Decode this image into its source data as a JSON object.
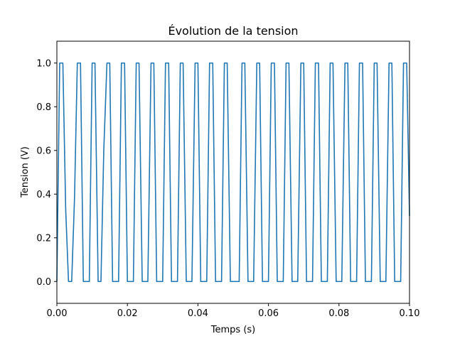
{
  "chart_data": {
    "type": "line",
    "title": "Évolution de la tension",
    "xlabel": "Temps (s)",
    "ylabel": "Tension (V)",
    "xlim": [
      0.0,
      0.1
    ],
    "ylim": [
      -0.1,
      1.1
    ],
    "grid": false,
    "x_ticks": [
      "0.00",
      "0.02",
      "0.04",
      "0.06",
      "0.08",
      "0.10"
    ],
    "y_ticks": [
      "0.0",
      "0.2",
      "0.4",
      "0.6",
      "0.8",
      "1.0"
    ],
    "line_color": "#1f77b4",
    "series": [
      {
        "x": [
          0.0,
          0.0008,
          0.0017,
          0.0025,
          0.0033,
          0.0042,
          0.005,
          0.0058,
          0.0067,
          0.0075,
          0.0083,
          0.0092,
          0.01,
          0.0108,
          0.0117,
          0.0125,
          0.0133,
          0.0142,
          0.015,
          0.0158,
          0.0167,
          0.0175,
          0.0183,
          0.0192,
          0.02,
          0.0208,
          0.0217,
          0.0225,
          0.0233,
          0.0242,
          0.025,
          0.0258,
          0.0267,
          0.0275,
          0.0283,
          0.0292,
          0.03,
          0.0308,
          0.0317,
          0.0325,
          0.0333,
          0.0342,
          0.035,
          0.0358,
          0.0367,
          0.0375,
          0.0383,
          0.0392,
          0.04,
          0.0408,
          0.0417,
          0.0425,
          0.0433,
          0.0442,
          0.045,
          0.0458,
          0.0467,
          0.0475,
          0.0483,
          0.0492,
          0.05,
          0.0508,
          0.0517,
          0.0525,
          0.0533,
          0.0542,
          0.055,
          0.0558,
          0.0567,
          0.0575,
          0.0583,
          0.0592,
          0.06,
          0.0608,
          0.0617,
          0.0625,
          0.0633,
          0.0642,
          0.065,
          0.0658,
          0.0667,
          0.0675,
          0.0683,
          0.0692,
          0.07,
          0.0708,
          0.0717,
          0.0725,
          0.0733,
          0.0742,
          0.075,
          0.0758,
          0.0767,
          0.0775,
          0.0783,
          0.0792,
          0.08,
          0.0808,
          0.0817,
          0.0825,
          0.0833,
          0.0842,
          0.085,
          0.0858,
          0.0867,
          0.0875,
          0.0883,
          0.0892,
          0.09,
          0.0908,
          0.0917,
          0.0925,
          0.0933,
          0.0942,
          0.095,
          0.0958,
          0.0967,
          0.0975,
          0.0983,
          0.0992,
          0.1
        ],
        "values": [
          0.0,
          1.0,
          1.0,
          0.33,
          0.0,
          0.0,
          0.38,
          1.0,
          1.0,
          0.0,
          0.0,
          0.0,
          1.0,
          1.0,
          0.0,
          0.0,
          0.6,
          1.0,
          1.0,
          0.0,
          0.0,
          0.0,
          1.0,
          1.0,
          0.0,
          0.0,
          0.0,
          1.0,
          1.0,
          0.0,
          0.0,
          0.0,
          1.0,
          1.0,
          0.0,
          0.0,
          0.0,
          1.0,
          1.0,
          0.0,
          0.0,
          0.0,
          1.0,
          1.0,
          0.0,
          0.0,
          0.0,
          1.0,
          1.0,
          0.0,
          0.0,
          0.0,
          1.0,
          1.0,
          0.0,
          0.0,
          0.0,
          1.0,
          1.0,
          0.0,
          0.0,
          0.0,
          0.0,
          1.0,
          1.0,
          0.0,
          0.0,
          0.0,
          1.0,
          1.0,
          0.0,
          0.0,
          0.0,
          1.0,
          1.0,
          0.0,
          0.0,
          0.0,
          1.0,
          1.0,
          0.0,
          0.0,
          0.0,
          1.0,
          1.0,
          0.0,
          0.0,
          0.0,
          1.0,
          1.0,
          0.0,
          0.0,
          0.0,
          1.0,
          1.0,
          0.0,
          0.0,
          0.0,
          1.0,
          1.0,
          0.0,
          0.0,
          0.0,
          1.0,
          1.0,
          0.0,
          0.0,
          0.0,
          1.0,
          1.0,
          0.0,
          0.0,
          0.0,
          1.0,
          1.0,
          0.0,
          0.0,
          0.0,
          1.0,
          1.0,
          0.3
        ]
      }
    ]
  }
}
